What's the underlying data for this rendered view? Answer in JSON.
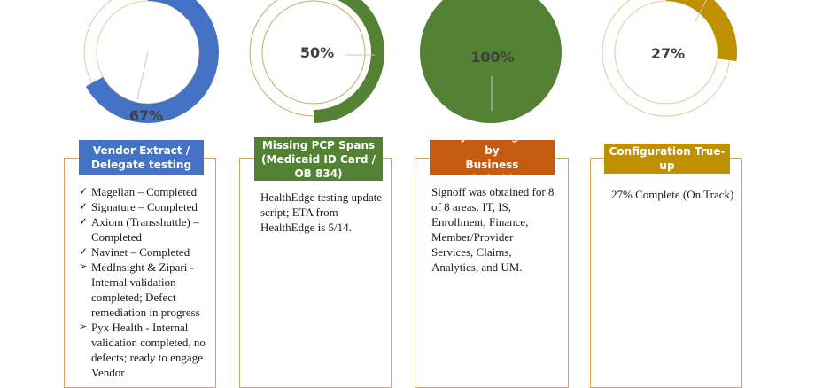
{
  "cards": [
    {
      "percent": "67%",
      "value": 0.67,
      "color": "#4472c4",
      "header": [
        "Vendor Extract /",
        "Delegate testing"
      ],
      "header_color": "#4472c4",
      "border_color": "#d9a15a",
      "items": [
        {
          "marker": "check-icon",
          "text": "Magellan – Completed"
        },
        {
          "marker": "check-icon",
          "text": "Signature – Completed"
        },
        {
          "marker": "check-icon",
          "text": " Axiom (Transshuttle) – Completed"
        },
        {
          "marker": "check-icon",
          "text": "Navinet – Completed"
        },
        {
          "marker": "arrow-icon",
          "text": " MedInsight & Zipari - Internal validation completed; Defect remediation in progress"
        },
        {
          "marker": "arrow-icon",
          "text": "Pyx Health - Internal validation completed, no defects; ready to engage Vendor"
        }
      ]
    },
    {
      "percent": "50%",
      "value": 0.5,
      "color": "#548235",
      "header": [
        "Missing PCP Spans",
        "(Medicaid ID Card /",
        "OB 834)"
      ],
      "header_color": "#548235",
      "border_color": "#c9a86a",
      "text": "HealthEdge testing update script; ETA from HealthEdge is 5/14."
    },
    {
      "percent": "100%",
      "value": 1.0,
      "color": "#548235",
      "header": [
        "Playbook Signoff by",
        "Business Stakeholders"
      ],
      "header_color": "#c55a11",
      "border_color": "#d9a15a",
      "text": "Signoff was obtained for 8 of 8 areas: IT, IS, Enrollment, Finance, Member/Provider Services, Claims, Analytics, and UM."
    },
    {
      "percent": "27%",
      "value": 0.27,
      "color": "#bf9000",
      "header": [
        "Configuration True-up"
      ],
      "header_color": "#bf9000",
      "border_color": "#d9a15a",
      "text": "27% Complete (On Track)"
    }
  ]
}
